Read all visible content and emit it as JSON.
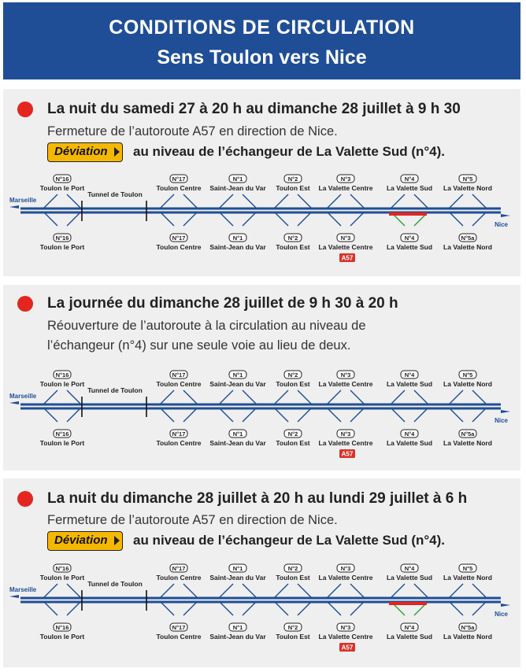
{
  "header": {
    "title": "CONDITIONS DE CIRCULATION",
    "subtitle": "Sens Toulon vers Nice"
  },
  "colors": {
    "header_bg": "#1f4e96",
    "road": "#1f4e96",
    "closure": "#e4261f",
    "deviation": "#f5b800",
    "detour_arrow": "#2e9e3e"
  },
  "diagram": {
    "city_start": "Marseille",
    "city_end": "Nice",
    "tunnel": "Tunnel de Toulon",
    "a57_badge": "A57",
    "top_exits": [
      {
        "num": "N°16",
        "label": "Toulon le Port"
      },
      {
        "num": "N°17",
        "label": "Toulon Centre"
      },
      {
        "num": "N°1",
        "label": "Saint-Jean du Var"
      },
      {
        "num": "N°2",
        "label": "Toulon Est"
      },
      {
        "num": "N°3",
        "label": "La Valette Centre"
      },
      {
        "num": "N°4",
        "label": "La Valette Sud"
      },
      {
        "num": "N°5",
        "label": "La Valette Nord"
      }
    ],
    "bottom_exits": [
      {
        "num": "N°16",
        "label": "Toulon le Port"
      },
      {
        "num": "N°17",
        "label": "Toulon Centre"
      },
      {
        "num": "N°1",
        "label": "Saint-Jean du Var"
      },
      {
        "num": "N°2",
        "label": "Toulon Est"
      },
      {
        "num": "N°3",
        "label": "La Valette Centre"
      },
      {
        "num": "N°4",
        "label": "La Valette Sud"
      },
      {
        "num": "N°5a",
        "label": "La Valette Nord"
      }
    ]
  },
  "panels": [
    {
      "title": "La nuit du samedi 27 à 20 h au dimanche 28 juillet à 9 h 30",
      "line1": "Fermeture de l’autoroute A57 en direction de Nice.",
      "deviation_label": "Déviation",
      "deviation_text": "au niveau de l’échangeur de La Valette Sud (n°4).",
      "closure": true
    },
    {
      "title": "La journée du dimanche 28 juillet de 9 h 30 à 20 h",
      "line1": "Réouverture de l’autoroute à la circulation au niveau de",
      "line2": "l’échangeur (n°4) sur une seule voie au lieu de deux.",
      "closure": false
    },
    {
      "title": "La nuit du dimanche 28 juillet à 20 h au lundi 29 juillet à 6 h",
      "line1": "Fermeture de l’autoroute A57 en direction de Nice.",
      "deviation_label": "Déviation",
      "deviation_text": "au niveau de l’échangeur de La Valette Sud (n°4).",
      "closure": true
    }
  ]
}
